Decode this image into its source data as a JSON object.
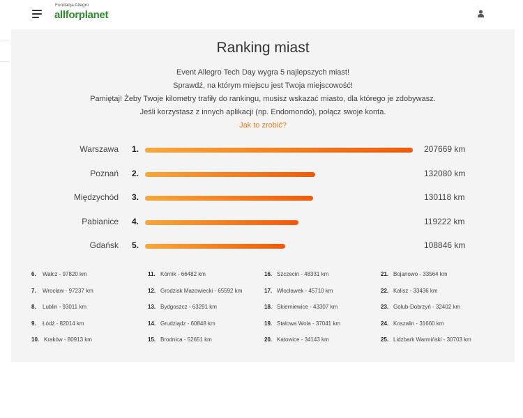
{
  "header": {
    "brand_small": "Fundacja Allegro",
    "brand_main": "allforplanet"
  },
  "main": {
    "title": "Ranking miast",
    "intro": [
      "Event Allegro Tech Day wygra 5 najlepszych miast!",
      "Sprawdź, na którym miejscu jest Twoja miejscowość!",
      "Pamiętaj! Żeby Twoje kilometry trafiły do rankingu, musisz wskazać miasto, dla którego je zdobywasz.",
      "Jeśli korzystasz z innych aplikacji (np. Endomondo), połącz swoje konta."
    ],
    "link": "Jak to zrobić?"
  },
  "colors": {
    "accent": "#f07a1c",
    "bar_start": "#f7a83a",
    "bar_end": "#f05a0a",
    "brand": "#2e8b2e"
  },
  "top": [
    {
      "rank": "1.",
      "city": "Warszawa",
      "value": "207669 km",
      "km": 207669
    },
    {
      "rank": "2.",
      "city": "Poznań",
      "value": "132080 km",
      "km": 132080
    },
    {
      "rank": "3.",
      "city": "Międzychód",
      "value": "130118 km",
      "km": 130118
    },
    {
      "rank": "4.",
      "city": "Pabianice",
      "value": "119222 km",
      "km": 119222
    },
    {
      "rank": "5.",
      "city": "Gdańsk",
      "value": "108846 km",
      "km": 108846
    }
  ],
  "rest": [
    [
      {
        "rank": "6.",
        "text": "Wałcz - 97820 km"
      },
      {
        "rank": "7.",
        "text": "Wrocław - 97237 km"
      },
      {
        "rank": "8.",
        "text": "Lublin - 93011 km"
      },
      {
        "rank": "9.",
        "text": "Łódź - 82014 km"
      },
      {
        "rank": "10.",
        "text": "Kraków - 80913 km"
      }
    ],
    [
      {
        "rank": "11.",
        "text": "Kórnik - 66482 km"
      },
      {
        "rank": "12.",
        "text": "Grodzisk Mazowiecki - 65592 km"
      },
      {
        "rank": "13.",
        "text": "Bydgoszcz - 63291 km"
      },
      {
        "rank": "14.",
        "text": "Grudziądz - 60848 km"
      },
      {
        "rank": "15.",
        "text": "Brodnica - 52651 km"
      }
    ],
    [
      {
        "rank": "16.",
        "text": "Szczecin - 48331 km"
      },
      {
        "rank": "17.",
        "text": "Włocławek - 45710 km"
      },
      {
        "rank": "18.",
        "text": "Skierniewice - 43307 km"
      },
      {
        "rank": "19.",
        "text": "Stalowa Wola - 37041 km"
      },
      {
        "rank": "20.",
        "text": "Katowice - 34143 km"
      }
    ],
    [
      {
        "rank": "21.",
        "text": "Bojanowo - 33564 km"
      },
      {
        "rank": "22.",
        "text": "Kalisz - 33436 km"
      },
      {
        "rank": "23.",
        "text": "Golub-Dobrzyń - 32402 km"
      },
      {
        "rank": "24.",
        "text": "Koszalin - 31660 km"
      },
      {
        "rank": "25.",
        "text": "Lidzbark Warmiński - 30703 km"
      }
    ]
  ]
}
